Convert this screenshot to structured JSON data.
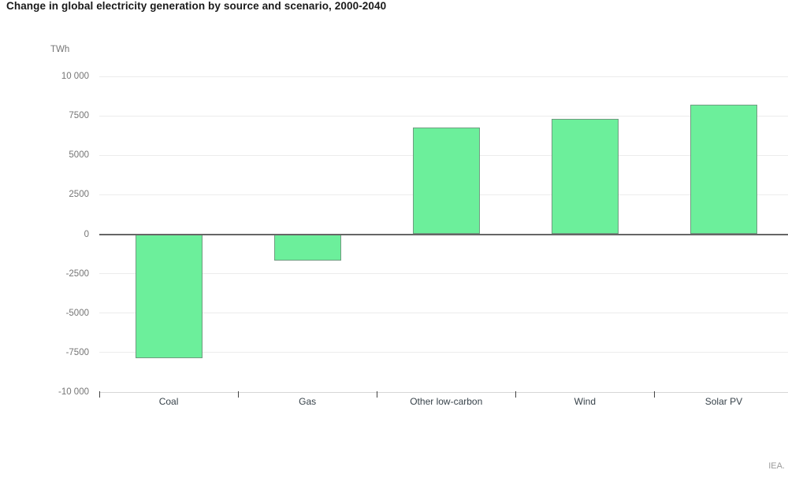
{
  "title": "Change in global electricity generation by source and scenario, 2000-2040",
  "unit_label": "TWh",
  "footer_credit": "IEA.",
  "colors": {
    "bar_fill": "#6cef9b",
    "bar_border": "#6f9c80",
    "gridline": "#ececec",
    "zero_line": "#666666",
    "axis_line": "#d6d6d6",
    "tick": "#444444",
    "y_label": "#757575",
    "x_label": "#37424a",
    "title": "#1a1a1a",
    "footer": "#9a9a9a"
  },
  "chart_data": {
    "type": "bar",
    "title": "Change in global electricity generation by source and scenario, 2000-2040",
    "xlabel": "",
    "ylabel": "TWh",
    "categories": [
      "Coal",
      "Gas",
      "Other low-carbon",
      "Wind",
      "Solar PV"
    ],
    "values": [
      -7850,
      -1650,
      6750,
      7300,
      8200
    ],
    "ylim": [
      -10000,
      10000
    ],
    "ytick_values": [
      10000,
      7500,
      5000,
      2500,
      0,
      -2500,
      -5000,
      -7500,
      -10000
    ],
    "ytick_labels": [
      "10 000",
      "7500",
      "5000",
      "2500",
      "0",
      "-2500",
      "-5000",
      "-7500",
      "-10 000"
    ],
    "grid": true,
    "legend": false,
    "bar_color": "#6cef9b"
  }
}
